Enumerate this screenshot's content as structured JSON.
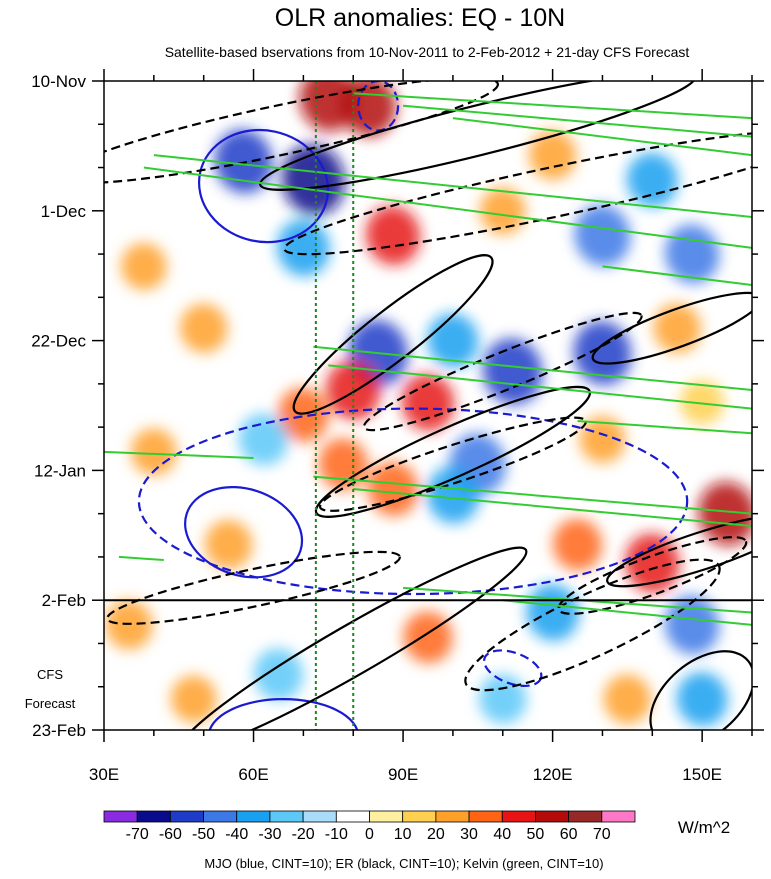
{
  "chart_data": {
    "type": "heatmap",
    "title": "OLR anomalies: EQ - 10N",
    "subtitle": "Satellite-based bservations from 10-Nov-2011 to 2-Feb-2012 + 21-day CFS Forecast",
    "x_axis": {
      "range": [
        30,
        160
      ],
      "ticks": [
        {
          "value": 30,
          "label": "30E"
        },
        {
          "value": 60,
          "label": "60E"
        },
        {
          "value": 90,
          "label": "90E"
        },
        {
          "value": 120,
          "label": "120E"
        },
        {
          "value": 150,
          "label": "150E"
        }
      ]
    },
    "y_axis": {
      "range_days": [
        0,
        105
      ],
      "direction": "downward",
      "ticks": [
        {
          "day": 0,
          "label": "10-Nov"
        },
        {
          "day": 21,
          "label": "1-Dec"
        },
        {
          "day": 42,
          "label": "22-Dec"
        },
        {
          "day": 63,
          "label": "12-Jan"
        },
        {
          "day": 84,
          "label": "2-Feb"
        },
        {
          "day": 105,
          "label": "23-Feb"
        }
      ]
    },
    "forecast": {
      "start_day": 84,
      "label_line1": "CFS",
      "label_line2": "Forecast"
    },
    "reference_lines_lon": [
      72.5,
      80
    ],
    "colorbar": {
      "units": "W/m^2",
      "levels": [
        -70,
        -60,
        -50,
        -40,
        -30,
        -20,
        -10,
        0,
        10,
        20,
        30,
        40,
        50,
        60,
        70
      ],
      "labels": [
        "-70",
        "-60",
        "-50",
        "-40",
        "-30",
        "-20",
        "-10",
        "0",
        "10",
        "20",
        "30",
        "40",
        "50",
        "60",
        "70"
      ],
      "colors": [
        "#8a2be2",
        "#0a0a8c",
        "#1e3cc8",
        "#3c78e6",
        "#1aa0f0",
        "#5cc8f8",
        "#a8dcf8",
        "#ffffff",
        "#fff0a0",
        "#ffd050",
        "#ffa028",
        "#ff6414",
        "#e61414",
        "#b40a0a",
        "#962828",
        "#ff78c8"
      ]
    },
    "anomaly_features": [
      {
        "lon": 75,
        "day": 3,
        "value": 55
      },
      {
        "lon": 83,
        "day": 4,
        "value": 50
      },
      {
        "lon": 72,
        "day": 16,
        "value": -70
      },
      {
        "lon": 58,
        "day": 13,
        "value": -55
      },
      {
        "lon": 88,
        "day": 25,
        "value": 45
      },
      {
        "lon": 70,
        "day": 27,
        "value": -40
      },
      {
        "lon": 110,
        "day": 21,
        "value": 20
      },
      {
        "lon": 130,
        "day": 25,
        "value": -50
      },
      {
        "lon": 148,
        "day": 28,
        "value": -45
      },
      {
        "lon": 140,
        "day": 16,
        "value": -35
      },
      {
        "lon": 120,
        "day": 12,
        "value": 25
      },
      {
        "lon": 85,
        "day": 44,
        "value": -60
      },
      {
        "lon": 100,
        "day": 42,
        "value": -35
      },
      {
        "lon": 112,
        "day": 47,
        "value": -60
      },
      {
        "lon": 130,
        "day": 44,
        "value": -55
      },
      {
        "lon": 80,
        "day": 50,
        "value": 45
      },
      {
        "lon": 95,
        "day": 52,
        "value": 40
      },
      {
        "lon": 70,
        "day": 54,
        "value": 35
      },
      {
        "lon": 105,
        "day": 62,
        "value": -50
      },
      {
        "lon": 100,
        "day": 67,
        "value": -40
      },
      {
        "lon": 88,
        "day": 66,
        "value": 35
      },
      {
        "lon": 78,
        "day": 62,
        "value": 30
      },
      {
        "lon": 155,
        "day": 70,
        "value": 55
      },
      {
        "lon": 140,
        "day": 78,
        "value": 45
      },
      {
        "lon": 125,
        "day": 75,
        "value": 30
      },
      {
        "lon": 120,
        "day": 86,
        "value": -40
      },
      {
        "lon": 148,
        "day": 88,
        "value": -45
      },
      {
        "lon": 150,
        "day": 100,
        "value": -35
      },
      {
        "lon": 95,
        "day": 90,
        "value": 30
      },
      {
        "lon": 35,
        "day": 88,
        "value": 25
      },
      {
        "lon": 40,
        "day": 60,
        "value": 20
      },
      {
        "lon": 38,
        "day": 30,
        "value": 20
      },
      {
        "lon": 50,
        "day": 40,
        "value": 25
      },
      {
        "lon": 62,
        "day": 58,
        "value": -30
      },
      {
        "lon": 65,
        "day": 96,
        "value": -30
      },
      {
        "lon": 110,
        "day": 100,
        "value": -25
      },
      {
        "lon": 130,
        "day": 58,
        "value": 20
      },
      {
        "lon": 150,
        "day": 52,
        "value": 15
      },
      {
        "lon": 145,
        "day": 40,
        "value": 25
      },
      {
        "lon": 55,
        "day": 75,
        "value": 25
      },
      {
        "lon": 48,
        "day": 100,
        "value": 20
      },
      {
        "lon": 135,
        "day": 100,
        "value": 25
      }
    ],
    "contours": {
      "MJO": {
        "color": "#1a1ad0",
        "cint": 10,
        "shapes": [
          {
            "lon": 62,
            "day": 17,
            "rlon": 13,
            "rday": 9,
            "angle": 12,
            "dashed": false
          },
          {
            "lon": 85,
            "day": 4,
            "rlon": 4,
            "rday": 4,
            "angle": 0,
            "dashed": true
          },
          {
            "lon": 92,
            "day": 68,
            "rlon": 55,
            "rday": 15,
            "angle": 0,
            "dashed": true
          },
          {
            "lon": 58,
            "day": 73,
            "rlon": 12,
            "rday": 7,
            "angle": 18,
            "dashed": false
          },
          {
            "lon": 112,
            "day": 95,
            "rlon": 6,
            "rday": 2.5,
            "angle": 20,
            "dashed": true
          },
          {
            "lon": 66,
            "day": 106,
            "rlon": 15,
            "rday": 6,
            "angle": 0,
            "dashed": false
          }
        ]
      },
      "ER": {
        "color": "#000000",
        "cint": 10,
        "shapes": [
          {
            "lon": 65,
            "day": 8,
            "rlon": 45,
            "rday": 4,
            "angle": -12,
            "dashed": true
          },
          {
            "lon": 105,
            "day": 8,
            "rlon": 45,
            "rday": 4,
            "angle": -14,
            "dashed": false
          },
          {
            "lon": 120,
            "day": 18,
            "rlon": 55,
            "rday": 4,
            "angle": -12,
            "dashed": true
          },
          {
            "lon": 88,
            "day": 41,
            "rlon": 25,
            "rday": 4,
            "angle": -38,
            "dashed": false
          },
          {
            "lon": 110,
            "day": 47,
            "rlon": 30,
            "rday": 3,
            "angle": -22,
            "dashed": true
          },
          {
            "lon": 145,
            "day": 40,
            "rlon": 18,
            "rday": 3,
            "angle": -20,
            "dashed": false
          },
          {
            "lon": 100,
            "day": 60,
            "rlon": 30,
            "rday": 4,
            "angle": -24,
            "dashed": false
          },
          {
            "lon": 100,
            "day": 62,
            "rlon": 28,
            "rday": 3,
            "angle": -18,
            "dashed": true
          },
          {
            "lon": 60,
            "day": 82,
            "rlon": 30,
            "rday": 3,
            "angle": -12,
            "dashed": true
          },
          {
            "lon": 80,
            "day": 92,
            "rlon": 40,
            "rday": 4,
            "angle": -30,
            "dashed": false
          },
          {
            "lon": 128,
            "day": 88,
            "rlon": 28,
            "rday": 5,
            "angle": -25,
            "dashed": true
          },
          {
            "lon": 140,
            "day": 80,
            "rlon": 20,
            "rday": 3,
            "angle": -20,
            "dashed": true
          },
          {
            "lon": 150,
            "day": 100,
            "rlon": 12,
            "rday": 6,
            "angle": -40,
            "dashed": false
          },
          {
            "lon": 150,
            "day": 76,
            "rlon": 20,
            "rday": 3,
            "angle": -18,
            "dashed": false
          }
        ]
      },
      "Kelvin": {
        "color": "#33cc33",
        "cint": 10,
        "segments": [
          {
            "lon1": 38,
            "day1": 14,
            "lon2": 160,
            "day2": 27
          },
          {
            "lon1": 40,
            "day1": 12,
            "lon2": 160,
            "day2": 22
          },
          {
            "lon1": 80,
            "day1": 2,
            "lon2": 160,
            "day2": 6
          },
          {
            "lon1": 90,
            "day1": 4,
            "lon2": 160,
            "day2": 9
          },
          {
            "lon1": 100,
            "day1": 6,
            "lon2": 160,
            "day2": 12
          },
          {
            "lon1": 72,
            "day1": 43,
            "lon2": 160,
            "day2": 50
          },
          {
            "lon1": 75,
            "day1": 46,
            "lon2": 160,
            "day2": 53
          },
          {
            "lon1": 72,
            "day1": 64,
            "lon2": 160,
            "day2": 70
          },
          {
            "lon1": 80,
            "day1": 66,
            "lon2": 160,
            "day2": 72
          },
          {
            "lon1": 110,
            "day1": 84,
            "lon2": 160,
            "day2": 88
          },
          {
            "lon1": 90,
            "day1": 82,
            "lon2": 160,
            "day2": 86
          },
          {
            "lon1": 30,
            "day1": 60,
            "lon2": 60,
            "day2": 61
          },
          {
            "lon1": 33,
            "day1": 77,
            "lon2": 42,
            "day2": 77.5
          },
          {
            "lon1": 125,
            "day1": 55,
            "lon2": 160,
            "day2": 57
          },
          {
            "lon1": 130,
            "day1": 30,
            "lon2": 160,
            "day2": 33
          }
        ]
      }
    },
    "footer": "MJO (blue, CINT=10); ER (black, CINT=10); Kelvin (green, CINT=10)"
  }
}
